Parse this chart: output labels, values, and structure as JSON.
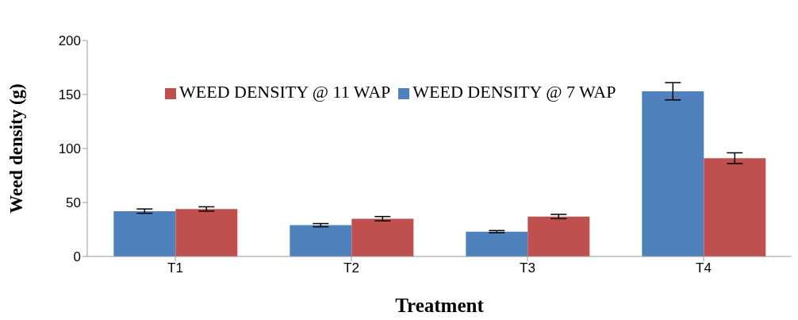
{
  "chart_data": {
    "type": "bar",
    "xlabel": "Treatment",
    "ylabel": "Weed density (g)",
    "categories": [
      "T1",
      "T2",
      "T3",
      "T4"
    ],
    "series": [
      {
        "name": "WEED DENSITY @ 7 WAP",
        "color": "#4f81bd",
        "values": [
          42,
          29,
          23,
          153
        ],
        "errors": [
          2,
          1.5,
          1,
          8
        ]
      },
      {
        "name": "WEED DENSITY @ 11 WAP",
        "color": "#c0504d",
        "values": [
          44,
          35,
          37,
          91
        ],
        "errors": [
          2,
          2,
          2,
          5
        ]
      }
    ],
    "ylim": [
      0,
      200
    ],
    "yticks": [
      0,
      50,
      100,
      150,
      200
    ],
    "grid": false,
    "legend": "top"
  }
}
